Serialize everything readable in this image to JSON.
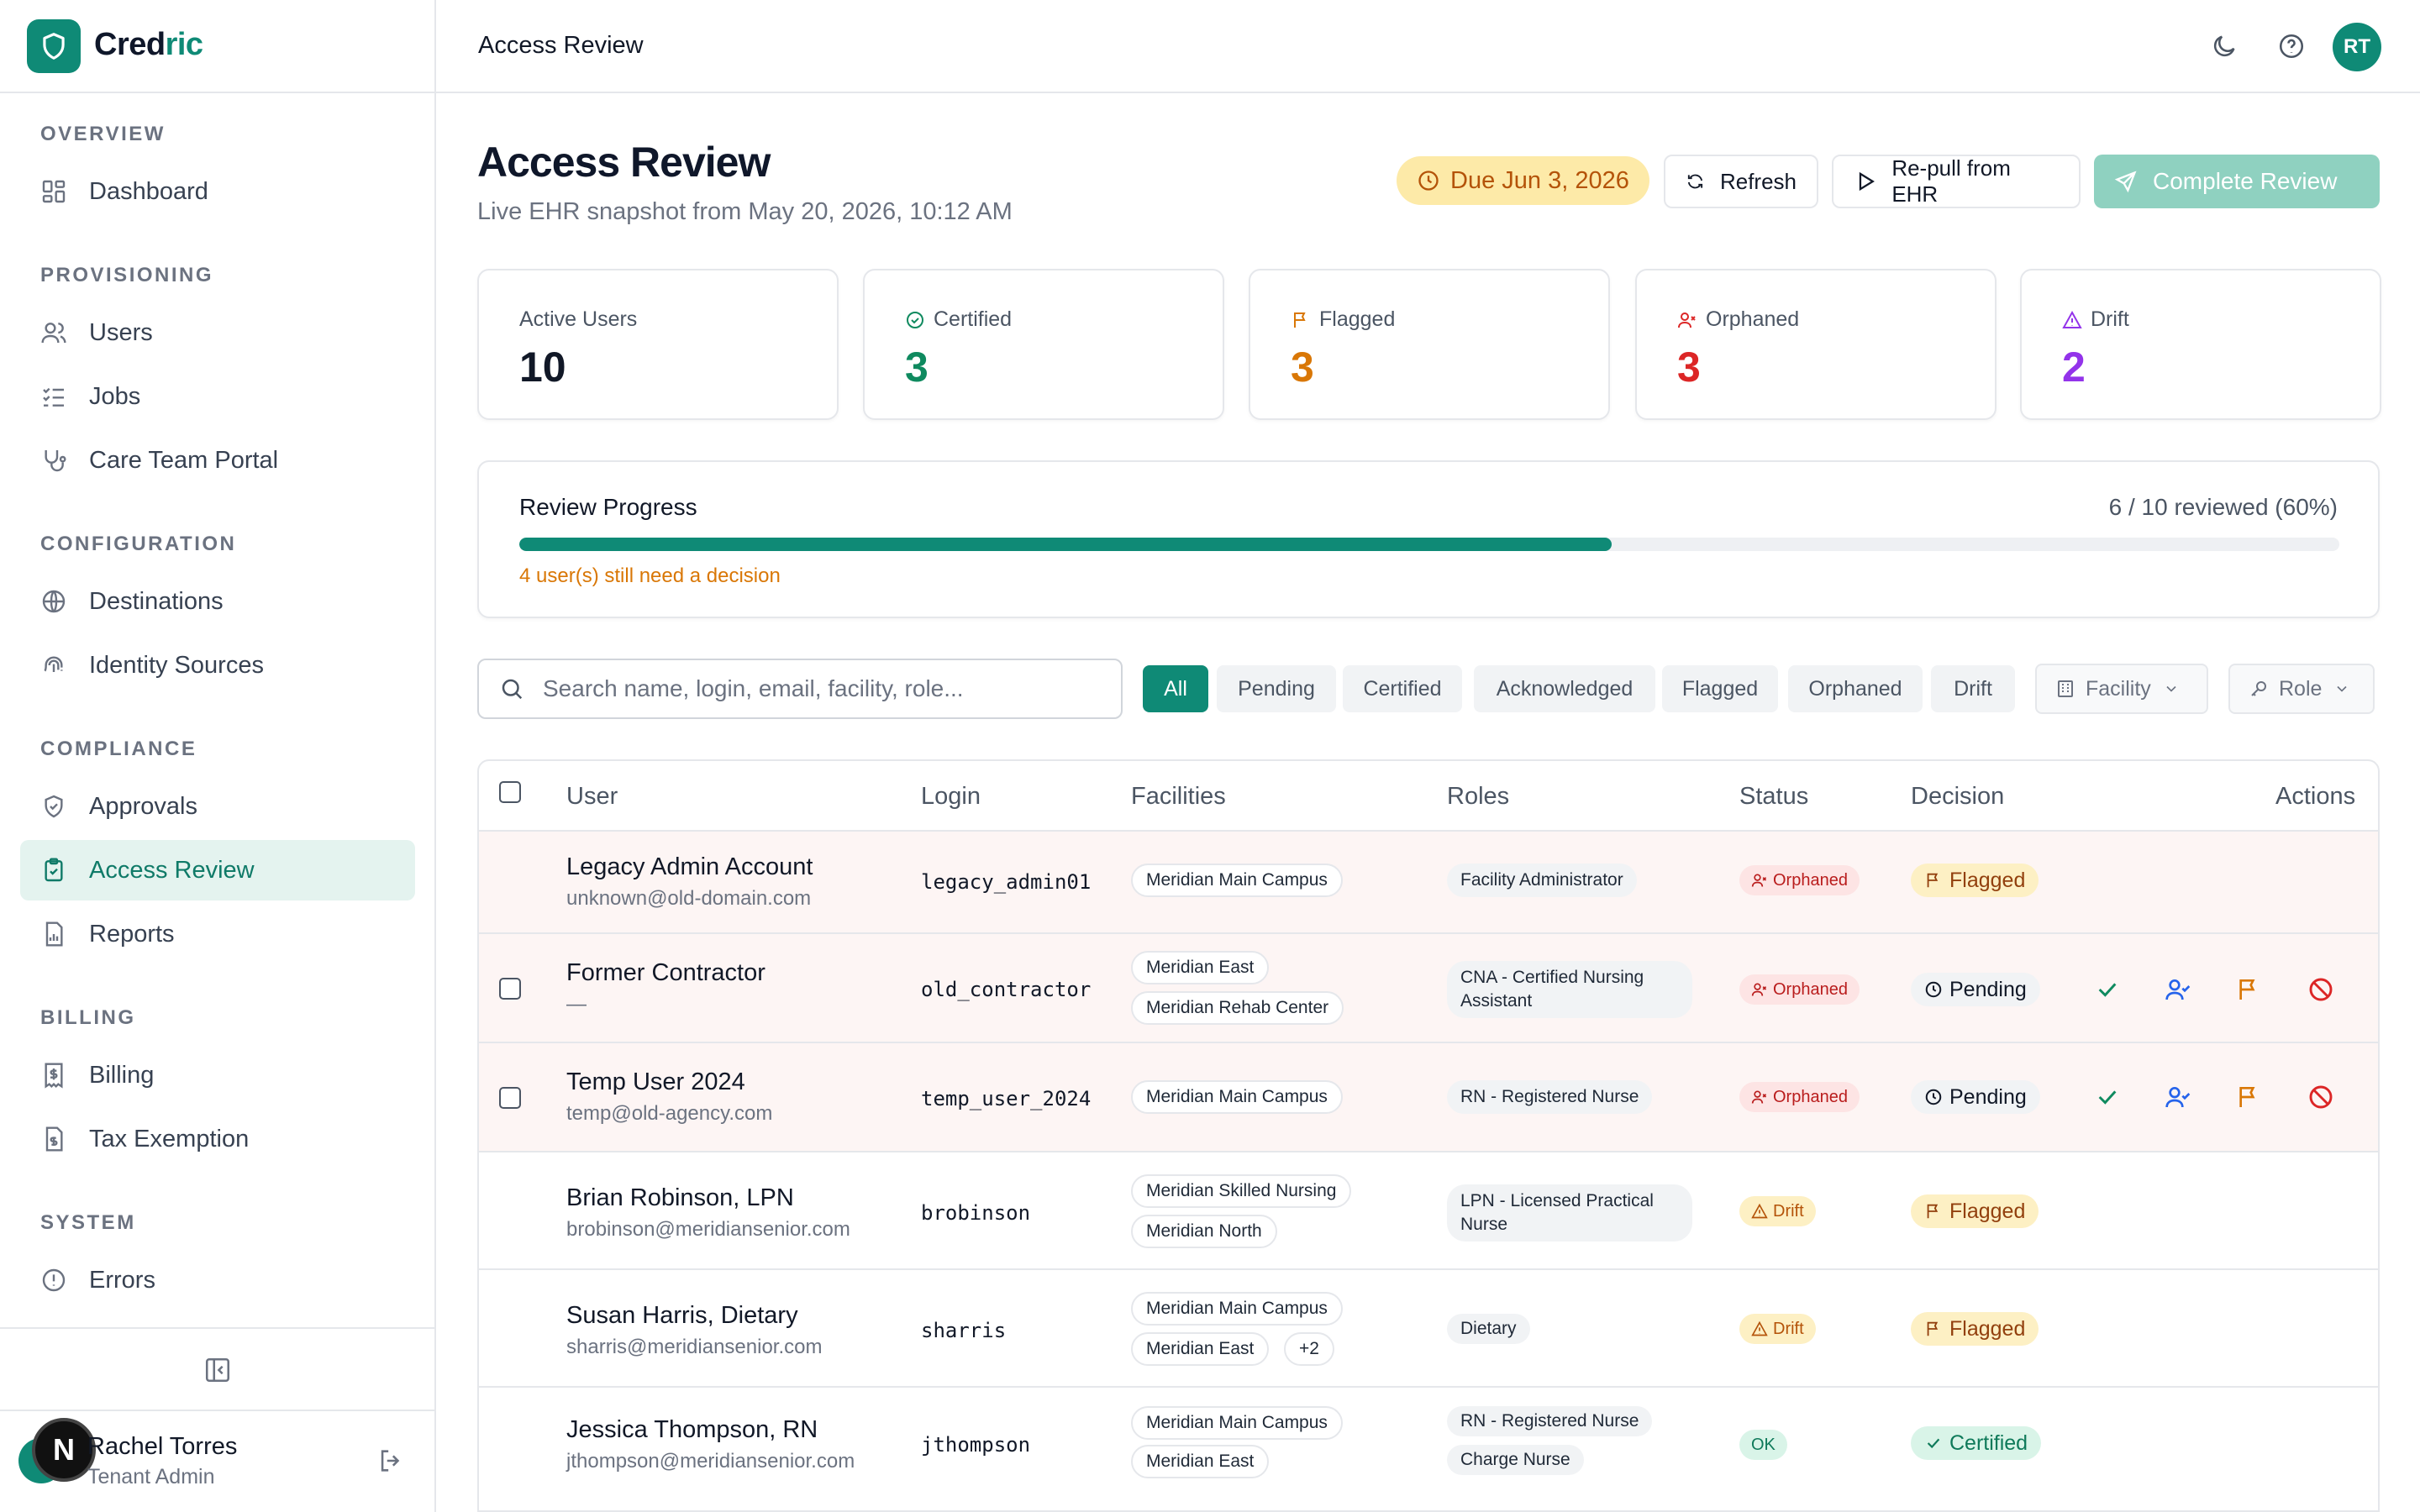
{
  "brand": {
    "name_prefix": "Cred",
    "name_suffix": "ric"
  },
  "sidebar": {
    "sections": [
      {
        "title": "OVERVIEW",
        "items": [
          {
            "label": "Dashboard",
            "icon": "dashboard-icon"
          }
        ]
      },
      {
        "title": "PROVISIONING",
        "items": [
          {
            "label": "Users",
            "icon": "users-icon"
          },
          {
            "label": "Jobs",
            "icon": "jobs-icon"
          },
          {
            "label": "Care Team Portal",
            "icon": "stethoscope-icon"
          }
        ]
      },
      {
        "title": "CONFIGURATION",
        "items": [
          {
            "label": "Destinations",
            "icon": "globe-icon"
          },
          {
            "label": "Identity Sources",
            "icon": "fingerprint-icon"
          }
        ]
      },
      {
        "title": "COMPLIANCE",
        "items": [
          {
            "label": "Approvals",
            "icon": "shield-check-icon"
          },
          {
            "label": "Access Review",
            "icon": "clipboard-check-icon",
            "active": true
          },
          {
            "label": "Reports",
            "icon": "report-icon"
          }
        ]
      },
      {
        "title": "BILLING",
        "items": [
          {
            "label": "Billing",
            "icon": "receipt-icon"
          },
          {
            "label": "Tax Exemption",
            "icon": "file-dollar-icon"
          }
        ]
      },
      {
        "title": "SYSTEM",
        "items": [
          {
            "label": "Errors",
            "icon": "alert-circle-icon"
          }
        ]
      }
    ],
    "user": {
      "name": "Rachel Torres",
      "role": "Tenant Admin",
      "overlay_badge": "N"
    }
  },
  "topbar": {
    "title": "Access Review",
    "avatar_initials": "RT"
  },
  "header": {
    "title": "Access Review",
    "subtitle": "Live EHR snapshot from May 20, 2026, 10:12 AM",
    "due": "Due Jun 3, 2026",
    "refresh_label": "Refresh",
    "repull_label": "Re-pull from EHR",
    "complete_label": "Complete Review"
  },
  "stats": [
    {
      "label": "Active Users",
      "value": "10",
      "color": "#111827",
      "icon": ""
    },
    {
      "label": "Certified",
      "value": "3",
      "color": "#0f8a5f",
      "icon": "check-circle-icon"
    },
    {
      "label": "Flagged",
      "value": "3",
      "color": "#d97706",
      "icon": "flag-icon"
    },
    {
      "label": "Orphaned",
      "value": "3",
      "color": "#dc2626",
      "icon": "user-x-icon"
    },
    {
      "label": "Drift",
      "value": "2",
      "color": "#9333ea",
      "icon": "alert-triangle-icon"
    }
  ],
  "progress": {
    "title": "Review Progress",
    "count": "6 / 10 reviewed (60%)",
    "fraction": 0.6,
    "note": "4 user(s) still need a decision"
  },
  "filters": {
    "search_placeholder": "Search name, login, email, facility, role...",
    "chips": [
      "All",
      "Pending",
      "Certified",
      "Acknowledged",
      "Flagged",
      "Orphaned",
      "Drift"
    ],
    "active_chip": "All",
    "facility_label": "Facility",
    "role_label": "Role"
  },
  "table": {
    "columns": [
      "User",
      "Login",
      "Facilities",
      "Roles",
      "Status",
      "Decision",
      "Actions"
    ],
    "rows": [
      {
        "name": "Legacy Admin Account",
        "email": "unknown@old-domain.com",
        "login": "legacy_admin01",
        "facilities": [
          "Meridian Main Campus"
        ],
        "roles": [
          "Facility Administrator"
        ],
        "status": "Orphaned",
        "decision": "Flagged",
        "checkbox": false,
        "actions": false
      },
      {
        "name": "Former Contractor",
        "email": "—",
        "login": "old_contractor",
        "facilities": [
          "Meridian East",
          "Meridian Rehab Center"
        ],
        "roles": [
          "CNA - Certified Nursing Assistant"
        ],
        "status": "Orphaned",
        "decision": "Pending",
        "checkbox": true,
        "actions": true
      },
      {
        "name": "Temp User 2024",
        "email": "temp@old-agency.com",
        "login": "temp_user_2024",
        "facilities": [
          "Meridian Main Campus"
        ],
        "roles": [
          "RN - Registered Nurse"
        ],
        "status": "Orphaned",
        "decision": "Pending",
        "checkbox": true,
        "actions": true
      },
      {
        "name": "Brian Robinson, LPN",
        "email": "brobinson@meridiansenior.com",
        "login": "brobinson",
        "facilities": [
          "Meridian Skilled Nursing",
          "Meridian North"
        ],
        "roles": [
          "LPN - Licensed Practical Nurse"
        ],
        "status": "Drift",
        "decision": "Flagged",
        "checkbox": false,
        "actions": false
      },
      {
        "name": "Susan Harris, Dietary",
        "email": "sharris@meridiansenior.com",
        "login": "sharris",
        "facilities": [
          "Meridian Main Campus",
          "Meridian East",
          "+2"
        ],
        "roles": [
          "Dietary"
        ],
        "status": "Drift",
        "decision": "Flagged",
        "checkbox": false,
        "actions": false
      },
      {
        "name": "Jessica Thompson, RN",
        "email": "jthompson@meridiansenior.com",
        "login": "jthompson",
        "facilities": [
          "Meridian Main Campus",
          "Meridian East"
        ],
        "roles": [
          "RN - Registered Nurse",
          "Charge Nurse"
        ],
        "status": "OK",
        "decision": "Certified",
        "checkbox": false,
        "actions": false
      }
    ]
  }
}
